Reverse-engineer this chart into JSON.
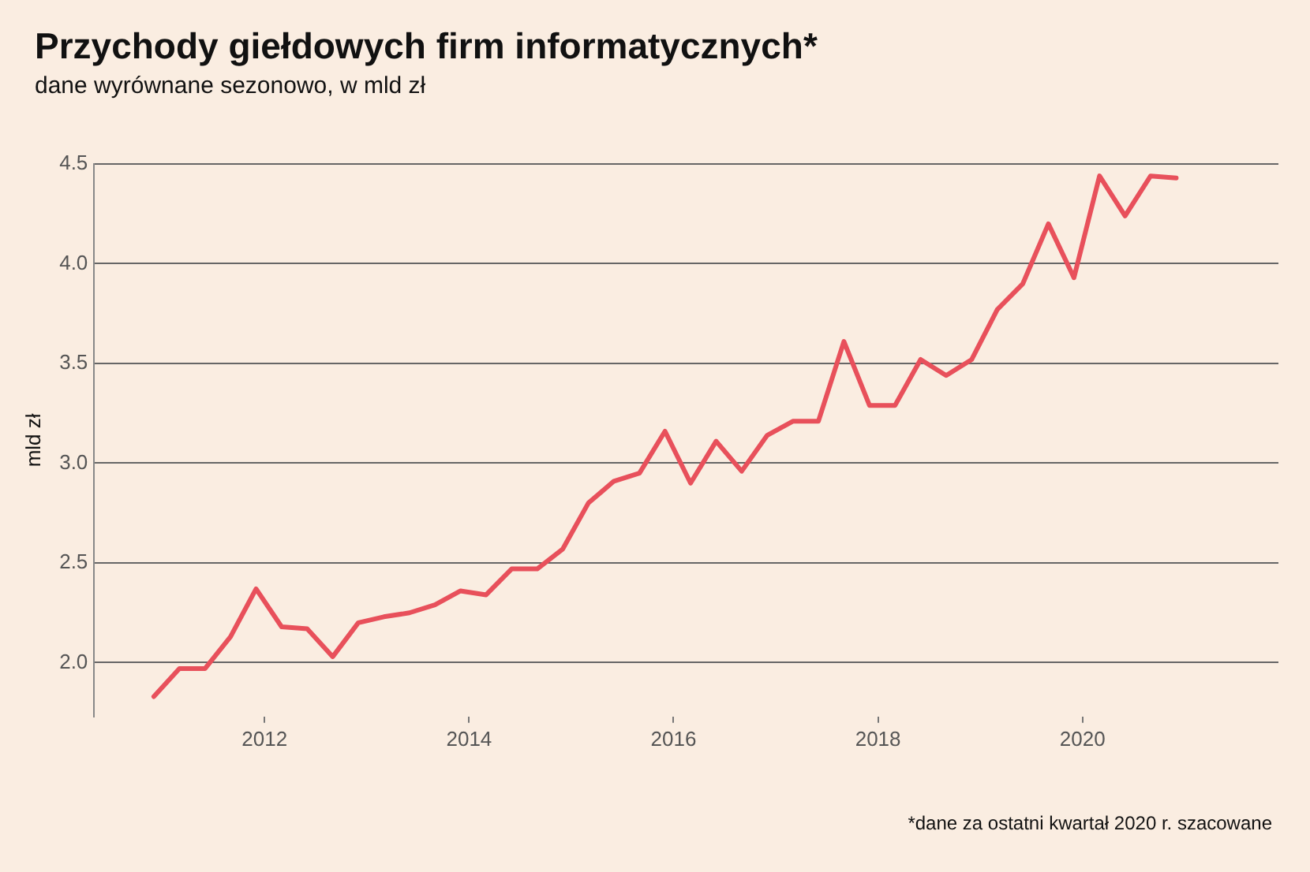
{
  "chart_data": {
    "type": "line",
    "title": "Przychody giełdowych firm informatycznych*",
    "subtitle": "dane wyrównane sezonowo, w mld zł",
    "ylabel": "mld zł",
    "annotations": [
      "*dane za ostatni kwartał 2020 r. szacowane"
    ],
    "x": [
      "2010-12",
      "2011-03",
      "2011-06",
      "2011-09",
      "2011-12",
      "2012-03",
      "2012-06",
      "2012-09",
      "2012-12",
      "2013-03",
      "2013-06",
      "2013-09",
      "2013-12",
      "2014-03",
      "2014-06",
      "2014-09",
      "2014-12",
      "2015-03",
      "2015-06",
      "2015-09",
      "2015-12",
      "2016-03",
      "2016-06",
      "2016-09",
      "2016-12",
      "2017-03",
      "2017-06",
      "2017-09",
      "2017-12",
      "2018-03",
      "2018-06",
      "2018-09",
      "2018-12",
      "2019-03",
      "2019-06",
      "2019-09",
      "2019-12",
      "2020-03",
      "2020-06",
      "2020-09",
      "2020-12"
    ],
    "series": [
      {
        "color": "#e8505b",
        "values": [
          1.83,
          1.97,
          1.97,
          2.13,
          2.37,
          2.18,
          2.17,
          2.03,
          2.2,
          2.23,
          2.25,
          2.29,
          2.36,
          2.34,
          2.47,
          2.47,
          2.57,
          2.8,
          2.91,
          2.95,
          3.16,
          2.9,
          3.11,
          2.96,
          3.14,
          3.21,
          3.21,
          3.61,
          3.29,
          3.29,
          3.52,
          3.44,
          3.52,
          3.77,
          3.9,
          4.2,
          3.93,
          4.44,
          4.24,
          4.44,
          4.43
        ]
      }
    ],
    "xlim": [
      "2010-05",
      "2021-12"
    ],
    "ylim": [
      1.73,
      4.5
    ],
    "xticks": [
      "2012",
      "2014",
      "2016",
      "2018",
      "2020"
    ],
    "yticks": [
      {
        "value": 2,
        "label": "2.0"
      },
      {
        "value": 2.5,
        "label": "2.5"
      },
      {
        "value": 3,
        "label": "3.0"
      },
      {
        "value": 3.5,
        "label": "3.5"
      },
      {
        "value": 4,
        "label": "4.0"
      },
      {
        "value": 4.5,
        "label": "4.5"
      }
    ],
    "grid": "y",
    "legend": false,
    "marker": "none",
    "line_style": "solid"
  }
}
